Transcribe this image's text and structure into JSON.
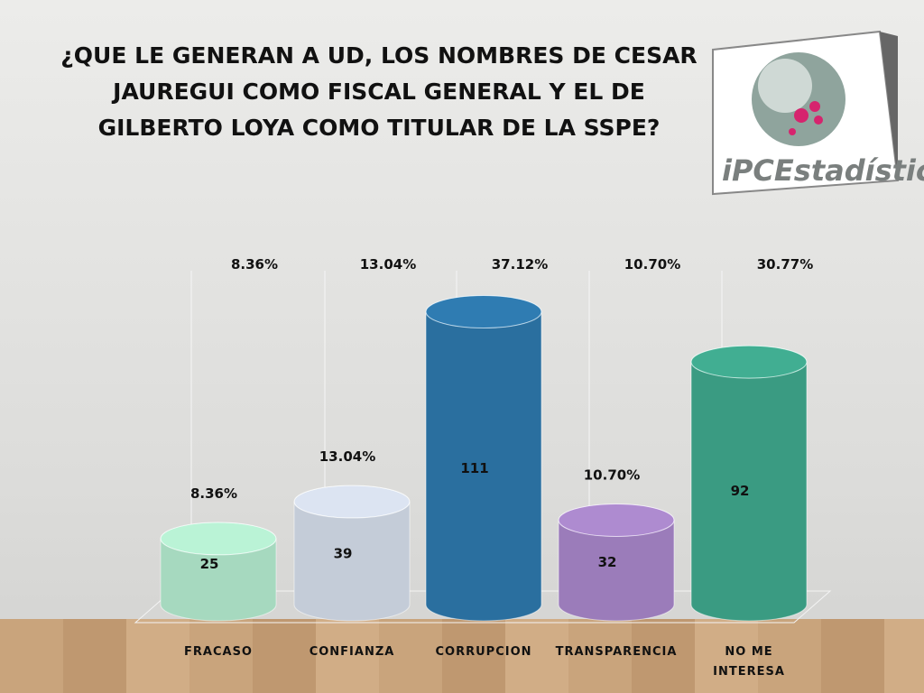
{
  "chart_data": {
    "type": "cylinder",
    "title": "¿QUE LE GENERAN A UD, LOS NOMBRES DE CESAR JAUREGUI COMO FISCAL GENERAL Y EL DE GILBERTO LOYA COMO TITULAR DE LA SSPE?",
    "logo_text": "iPCEstadística",
    "categories": [
      "FRACASO",
      "CONFIANZA",
      "CORRUPCION",
      "TRANSPARENCIA",
      "NO ME INTERESA"
    ],
    "values": [
      25,
      39,
      111,
      32,
      92
    ],
    "colors": [
      "#a6d9bf",
      "#c4ccd8",
      "#2a6f9f",
      "#9b7cba",
      "#3a9b82"
    ],
    "percent_values": [
      8.36,
      13.04,
      37.12,
      10.7,
      30.77
    ],
    "percent_labels": [
      "8.36%",
      "13.04%",
      "37.12%",
      "10.70%",
      "30.77%"
    ],
    "ylim": [
      0,
      130
    ]
  }
}
